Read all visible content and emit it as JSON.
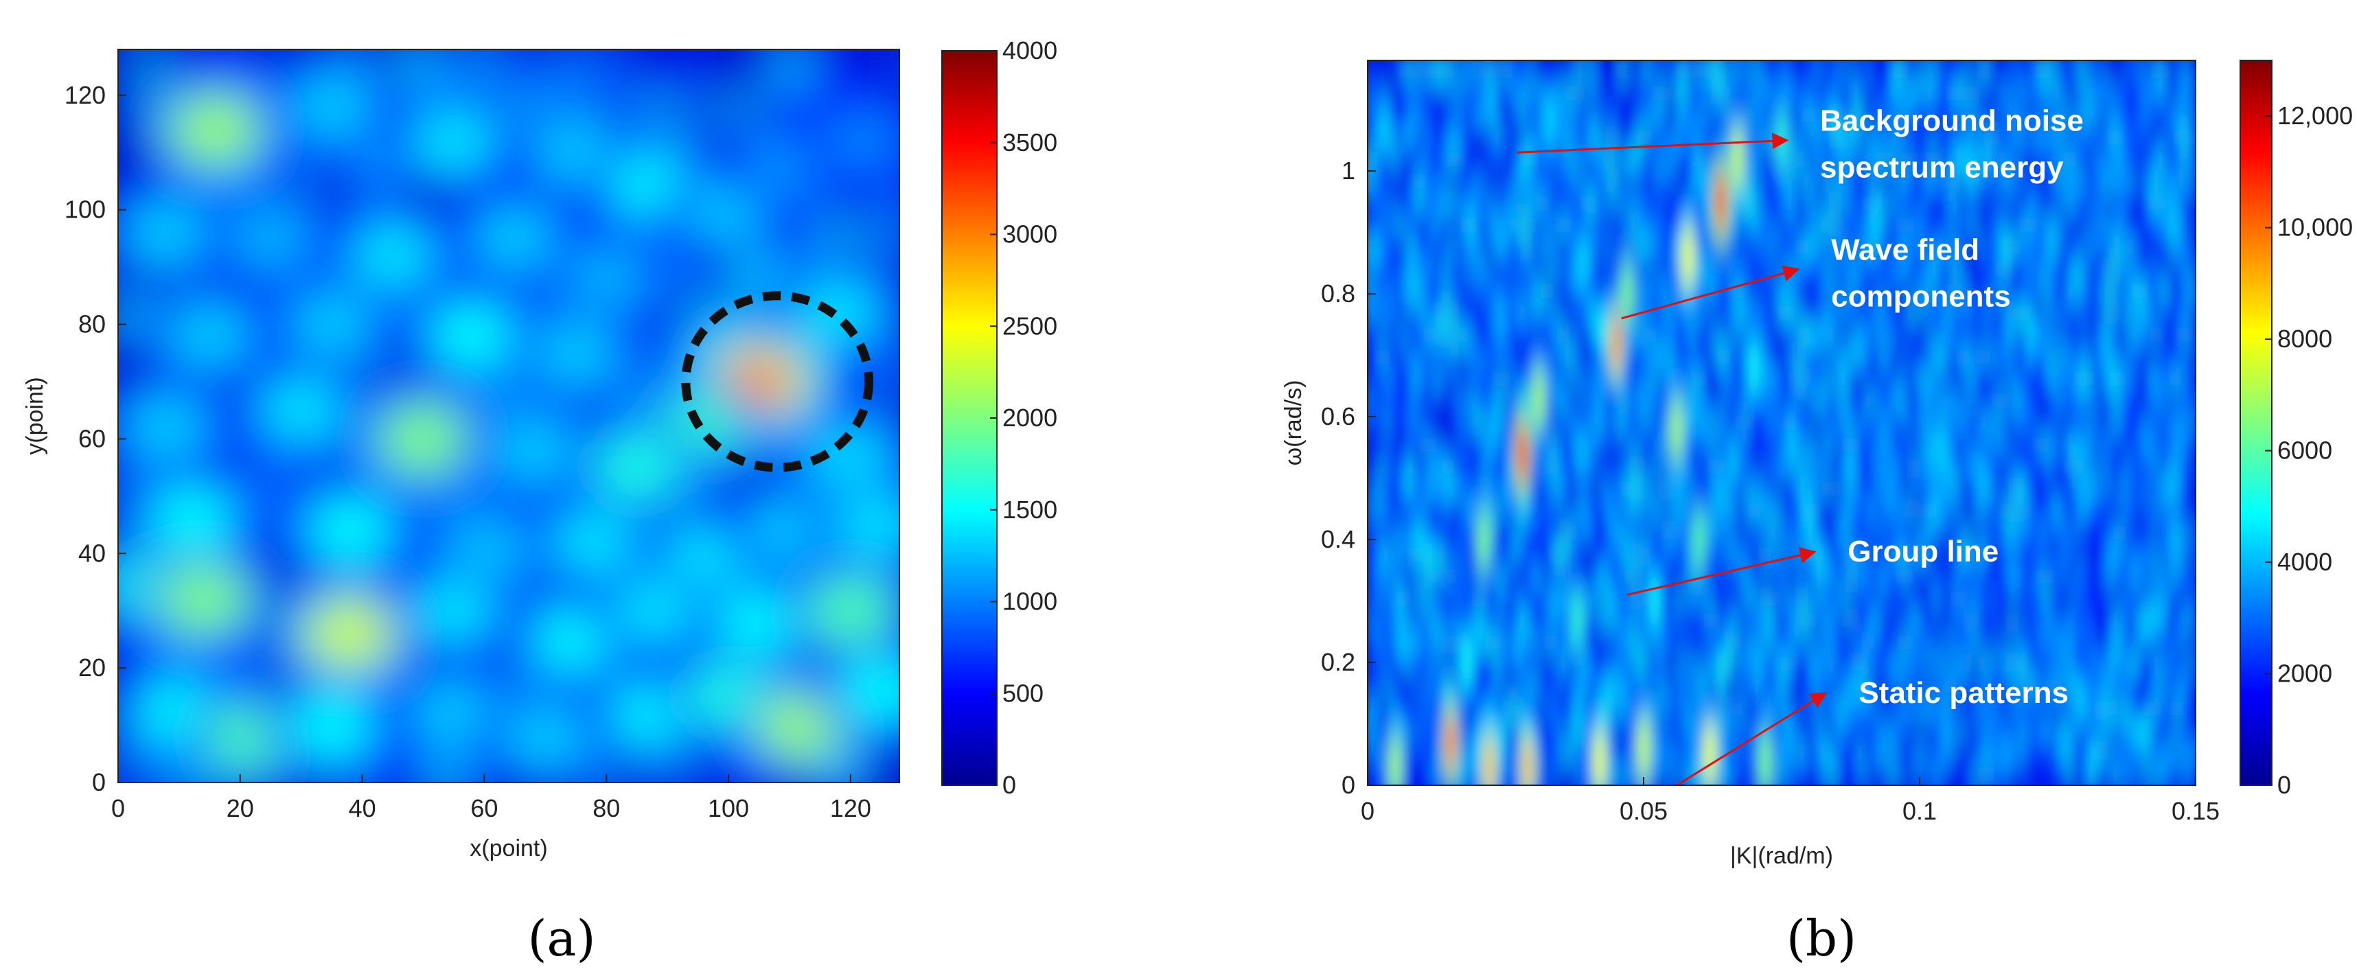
{
  "chart_data": [
    {
      "type": "heatmap",
      "panel_label": "(a)",
      "xlabel": "x(point)",
      "ylabel": "y(point)",
      "xlim": [
        0,
        128
      ],
      "ylim": [
        0,
        128
      ],
      "xticks": [
        0,
        20,
        40,
        60,
        80,
        100,
        120
      ],
      "yticks": [
        0,
        20,
        40,
        60,
        80,
        100,
        120
      ],
      "colorbar": {
        "min": 0,
        "max": 4000,
        "ticks": [
          0,
          500,
          1000,
          1500,
          2000,
          2500,
          3000,
          3500,
          4000
        ]
      },
      "colormap": "jet",
      "background_level": 300,
      "highlight_circle": {
        "x": 108,
        "y": 70,
        "r": 15
      },
      "hotspots": [
        {
          "x": 16,
          "y": 114,
          "v": 2100
        },
        {
          "x": 35,
          "y": 118,
          "v": 1300
        },
        {
          "x": 55,
          "y": 112,
          "v": 1400
        },
        {
          "x": 75,
          "y": 110,
          "v": 1300
        },
        {
          "x": 88,
          "y": 104,
          "v": 1500
        },
        {
          "x": 100,
          "y": 100,
          "v": 1300
        },
        {
          "x": 110,
          "y": 108,
          "v": 1100
        },
        {
          "x": 122,
          "y": 112,
          "v": 1000
        },
        {
          "x": 8,
          "y": 96,
          "v": 1300
        },
        {
          "x": 25,
          "y": 95,
          "v": 1200
        },
        {
          "x": 45,
          "y": 92,
          "v": 1400
        },
        {
          "x": 65,
          "y": 95,
          "v": 1300
        },
        {
          "x": 80,
          "y": 88,
          "v": 1200
        },
        {
          "x": 118,
          "y": 82,
          "v": 1400
        },
        {
          "x": 15,
          "y": 78,
          "v": 1300
        },
        {
          "x": 35,
          "y": 80,
          "v": 1300
        },
        {
          "x": 58,
          "y": 78,
          "v": 1500
        },
        {
          "x": 75,
          "y": 75,
          "v": 1300
        },
        {
          "x": 105,
          "y": 70,
          "v": 2900
        },
        {
          "x": 95,
          "y": 62,
          "v": 1700
        },
        {
          "x": 8,
          "y": 62,
          "v": 1300
        },
        {
          "x": 30,
          "y": 65,
          "v": 1400
        },
        {
          "x": 50,
          "y": 60,
          "v": 2000
        },
        {
          "x": 68,
          "y": 58,
          "v": 1300
        },
        {
          "x": 85,
          "y": 55,
          "v": 1600
        },
        {
          "x": 120,
          "y": 56,
          "v": 1400
        },
        {
          "x": 12,
          "y": 46,
          "v": 1500
        },
        {
          "x": 38,
          "y": 44,
          "v": 1500
        },
        {
          "x": 60,
          "y": 40,
          "v": 1300
        },
        {
          "x": 78,
          "y": 42,
          "v": 1400
        },
        {
          "x": 96,
          "y": 38,
          "v": 1500
        },
        {
          "x": 110,
          "y": 44,
          "v": 1300
        },
        {
          "x": 124,
          "y": 45,
          "v": 1400
        },
        {
          "x": 5,
          "y": 34,
          "v": 1600
        },
        {
          "x": 14,
          "y": 32,
          "v": 2000
        },
        {
          "x": 38,
          "y": 26,
          "v": 2300
        },
        {
          "x": 55,
          "y": 30,
          "v": 1400
        },
        {
          "x": 75,
          "y": 25,
          "v": 1500
        },
        {
          "x": 88,
          "y": 30,
          "v": 1400
        },
        {
          "x": 105,
          "y": 28,
          "v": 1500
        },
        {
          "x": 120,
          "y": 30,
          "v": 1800
        },
        {
          "x": 10,
          "y": 12,
          "v": 1500
        },
        {
          "x": 22,
          "y": 8,
          "v": 1800
        },
        {
          "x": 35,
          "y": 10,
          "v": 1500
        },
        {
          "x": 55,
          "y": 12,
          "v": 1300
        },
        {
          "x": 70,
          "y": 8,
          "v": 1300
        },
        {
          "x": 88,
          "y": 12,
          "v": 1500
        },
        {
          "x": 100,
          "y": 15,
          "v": 1600
        },
        {
          "x": 112,
          "y": 10,
          "v": 2100
        },
        {
          "x": 125,
          "y": 16,
          "v": 1500
        }
      ]
    },
    {
      "type": "heatmap",
      "panel_label": "(b)",
      "xlabel": "|K|(rad/m)",
      "ylabel": "ω(rad/s)",
      "xlim": [
        0,
        0.15
      ],
      "ylim": [
        0,
        1.18
      ],
      "xticks": [
        0,
        0.05,
        0.1,
        0.15
      ],
      "xticklabels": [
        "0",
        "0.05",
        "0.1",
        "0.15"
      ],
      "yticks": [
        0,
        0.2,
        0.4,
        0.6,
        0.8,
        1.0
      ],
      "yticklabels": [
        "0",
        "0.2",
        "0.4",
        "0.6",
        "0.8",
        "1"
      ],
      "colorbar": {
        "min": 0,
        "max": 13000,
        "ticks": [
          0,
          2000,
          4000,
          6000,
          8000,
          10000,
          12000
        ],
        "ticklabels": [
          "0",
          "2000",
          "4000",
          "6000",
          "8000",
          "10,000",
          "12,000"
        ]
      },
      "colormap": "jet",
      "background_level": 1200,
      "hotspots": [
        {
          "x": 0.015,
          "y": 0.07,
          "v": 10000
        },
        {
          "x": 0.028,
          "y": 0.54,
          "v": 11000
        },
        {
          "x": 0.031,
          "y": 0.63,
          "v": 7000
        },
        {
          "x": 0.045,
          "y": 0.72,
          "v": 9500
        },
        {
          "x": 0.047,
          "y": 0.8,
          "v": 6500
        },
        {
          "x": 0.056,
          "y": 0.58,
          "v": 7000
        },
        {
          "x": 0.058,
          "y": 0.86,
          "v": 8000
        },
        {
          "x": 0.06,
          "y": 0.4,
          "v": 6000
        },
        {
          "x": 0.064,
          "y": 0.95,
          "v": 11000
        },
        {
          "x": 0.067,
          "y": 1.02,
          "v": 7500
        },
        {
          "x": 0.021,
          "y": 0.4,
          "v": 6500
        },
        {
          "x": 0.038,
          "y": 0.27,
          "v": 5500
        },
        {
          "x": 0.052,
          "y": 0.3,
          "v": 5000
        },
        {
          "x": 0.039,
          "y": 0.85,
          "v": 4500
        },
        {
          "x": 0.033,
          "y": 1.08,
          "v": 4500
        },
        {
          "x": 0.024,
          "y": 0.76,
          "v": 4000
        },
        {
          "x": 0.018,
          "y": 0.2,
          "v": 5000
        },
        {
          "x": 0.075,
          "y": 1.05,
          "v": 5500
        },
        {
          "x": 0.07,
          "y": 0.68,
          "v": 5000
        },
        {
          "x": 0.005,
          "y": 0.03,
          "v": 7000
        },
        {
          "x": 0.022,
          "y": 0.03,
          "v": 9000
        },
        {
          "x": 0.029,
          "y": 0.03,
          "v": 9000
        },
        {
          "x": 0.042,
          "y": 0.04,
          "v": 8000
        },
        {
          "x": 0.05,
          "y": 0.06,
          "v": 7500
        },
        {
          "x": 0.062,
          "y": 0.05,
          "v": 8000
        },
        {
          "x": 0.072,
          "y": 0.04,
          "v": 6500
        },
        {
          "x": 0.1,
          "y": 0.9,
          "v": 3500
        },
        {
          "x": 0.12,
          "y": 0.6,
          "v": 3000
        },
        {
          "x": 0.13,
          "y": 0.25,
          "v": 3000
        },
        {
          "x": 0.09,
          "y": 0.35,
          "v": 3500
        }
      ],
      "annotations": [
        {
          "text": [
            "Background noise",
            "spectrum energy"
          ],
          "arrow_from": [
            0.027,
            1.03
          ],
          "arrow_to": [
            0.076,
            1.05
          ]
        },
        {
          "text": [
            "Wave field",
            "components"
          ],
          "arrow_from": [
            0.046,
            0.76
          ],
          "arrow_to": [
            0.078,
            0.84
          ]
        },
        {
          "text": [
            "Group line"
          ],
          "arrow_from": [
            0.047,
            0.31
          ],
          "arrow_to": [
            0.081,
            0.38
          ]
        },
        {
          "text": [
            "Static patterns"
          ],
          "arrow_from": [
            0.056,
            0.0
          ],
          "arrow_to": [
            0.083,
            0.15
          ]
        }
      ]
    }
  ]
}
